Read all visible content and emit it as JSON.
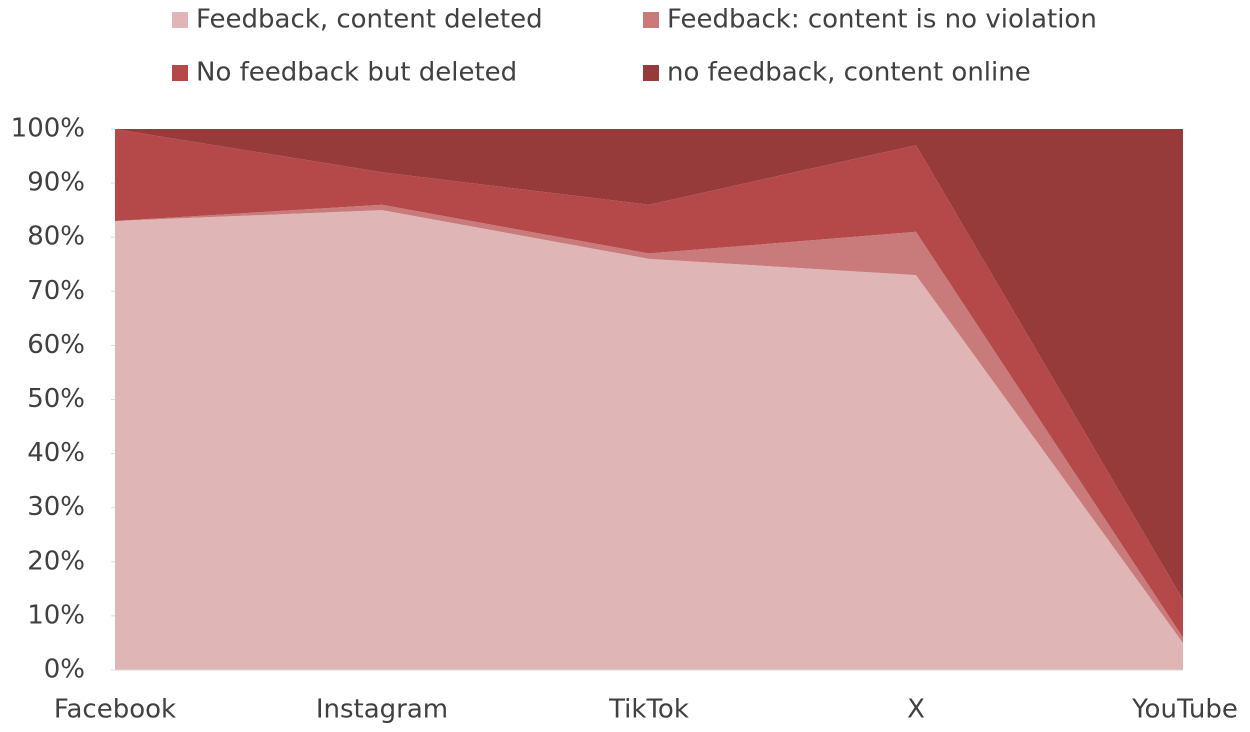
{
  "chart_data": {
    "type": "stacked_area",
    "categories": [
      "Facebook",
      "Instagram",
      "TikTok",
      "X",
      "YouTube"
    ],
    "series": [
      {
        "name": "Feedback, content deleted",
        "color": "#dfb5b5",
        "values": [
          83,
          85,
          76,
          73,
          5
        ]
      },
      {
        "name": "Feedback: content is no violation",
        "color": "#c97a7a",
        "values": [
          0,
          1,
          1,
          8,
          1
        ]
      },
      {
        "name": "No feedback but deleted",
        "color": "#b54848",
        "values": [
          17,
          6,
          9,
          16,
          7
        ]
      },
      {
        "name": "no feedback, content online",
        "color": "#973a3a",
        "values": [
          0,
          8,
          14,
          3,
          87
        ]
      }
    ],
    "ylim": [
      0,
      100
    ],
    "yticks": [
      {
        "value": 0,
        "label": "0%"
      },
      {
        "value": 10,
        "label": "10%"
      },
      {
        "value": 20,
        "label": "20%"
      },
      {
        "value": 30,
        "label": "30%"
      },
      {
        "value": 40,
        "label": "40%"
      },
      {
        "value": 50,
        "label": "50%"
      },
      {
        "value": 60,
        "label": "60%"
      },
      {
        "value": 70,
        "label": "70%"
      },
      {
        "value": 80,
        "label": "80%"
      },
      {
        "value": 90,
        "label": "90%"
      },
      {
        "value": 100,
        "label": "100%"
      }
    ],
    "legend": "top"
  }
}
